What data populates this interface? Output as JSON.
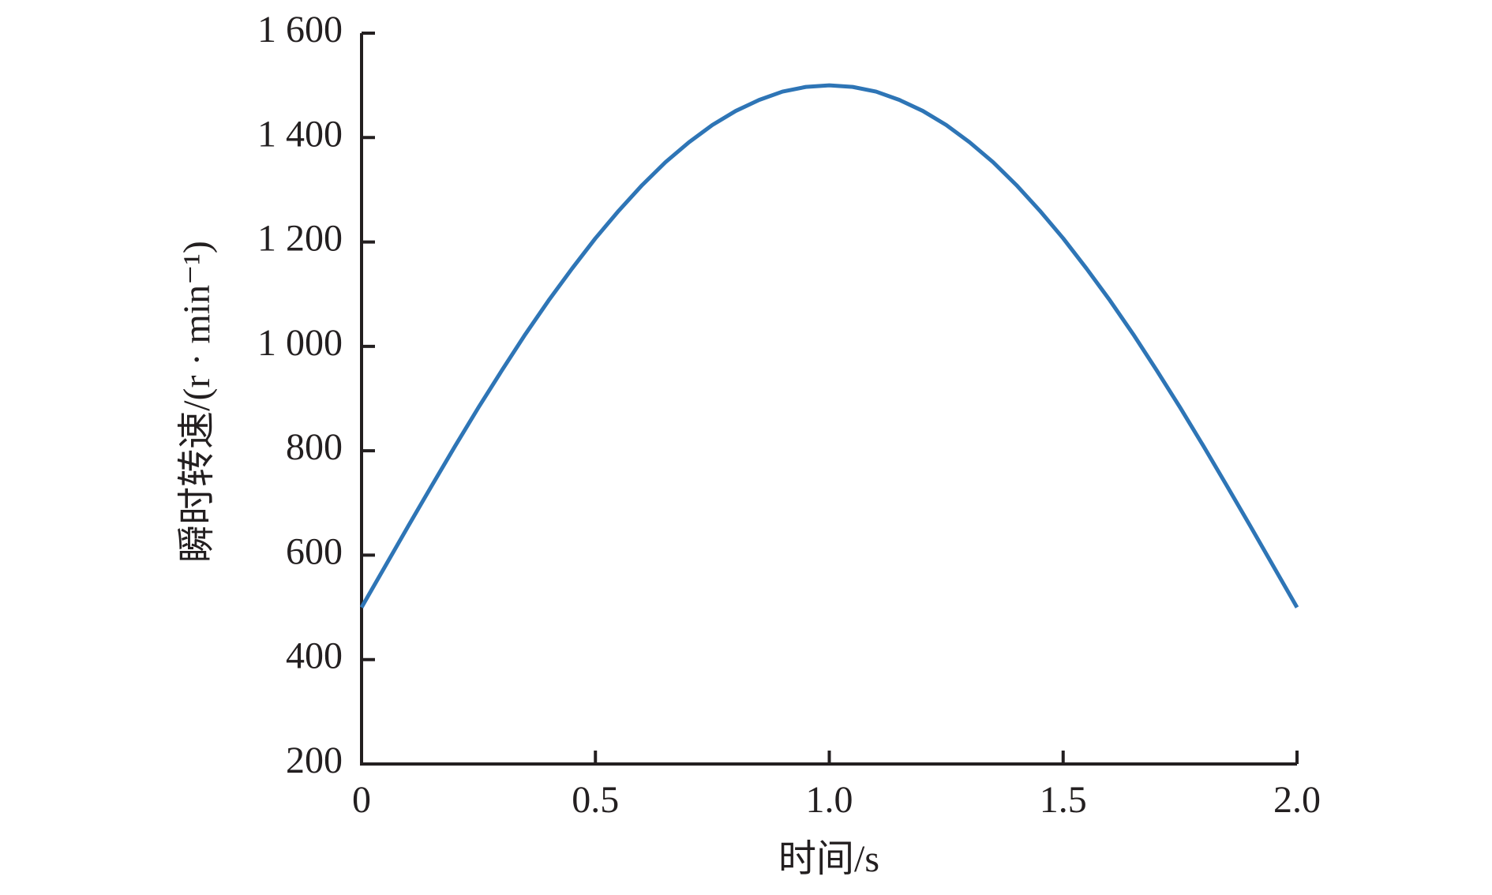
{
  "chart_data": {
    "type": "line",
    "x_label": "时间/s",
    "y_label": "瞬时转速/(r · min⁻¹)",
    "x": [
      0,
      0.05,
      0.1,
      0.15,
      0.2,
      0.25,
      0.3,
      0.35,
      0.4,
      0.45,
      0.5,
      0.55,
      0.6,
      0.65,
      0.7,
      0.75,
      0.8,
      0.85,
      0.9,
      0.95,
      1.0,
      1.05,
      1.1,
      1.15,
      1.2,
      1.25,
      1.3,
      1.35,
      1.4,
      1.45,
      1.5,
      1.55,
      1.6,
      1.65,
      1.7,
      1.75,
      1.8,
      1.85,
      1.9,
      1.95,
      2.0
    ],
    "series": [
      {
        "color": "#2e75b6",
        "values": [
          500,
          578,
          656,
          733,
          809,
          883,
          954,
          1023,
          1088,
          1149,
          1207,
          1260,
          1309,
          1353,
          1391,
          1424,
          1451,
          1472,
          1488,
          1497,
          1500,
          1497,
          1488,
          1472,
          1451,
          1424,
          1391,
          1353,
          1309,
          1260,
          1207,
          1149,
          1088,
          1023,
          954,
          883,
          809,
          733,
          656,
          578,
          500
        ]
      }
    ],
    "xlim": [
      0,
      2.0
    ],
    "xticks": [
      0,
      0.5,
      {
        "value": 1.0,
        "label": "1.0"
      },
      1.5,
      {
        "value": 2.0,
        "label": "2.0"
      }
    ],
    "ylim": [
      200,
      1600
    ],
    "yticks": [
      200,
      400,
      600,
      800,
      {
        "value": 1000,
        "label": "1 000"
      },
      {
        "value": 1200,
        "label": "1 200"
      },
      {
        "value": 1400,
        "label": "1 400"
      },
      {
        "value": 1600,
        "label": "1 600"
      }
    ]
  }
}
